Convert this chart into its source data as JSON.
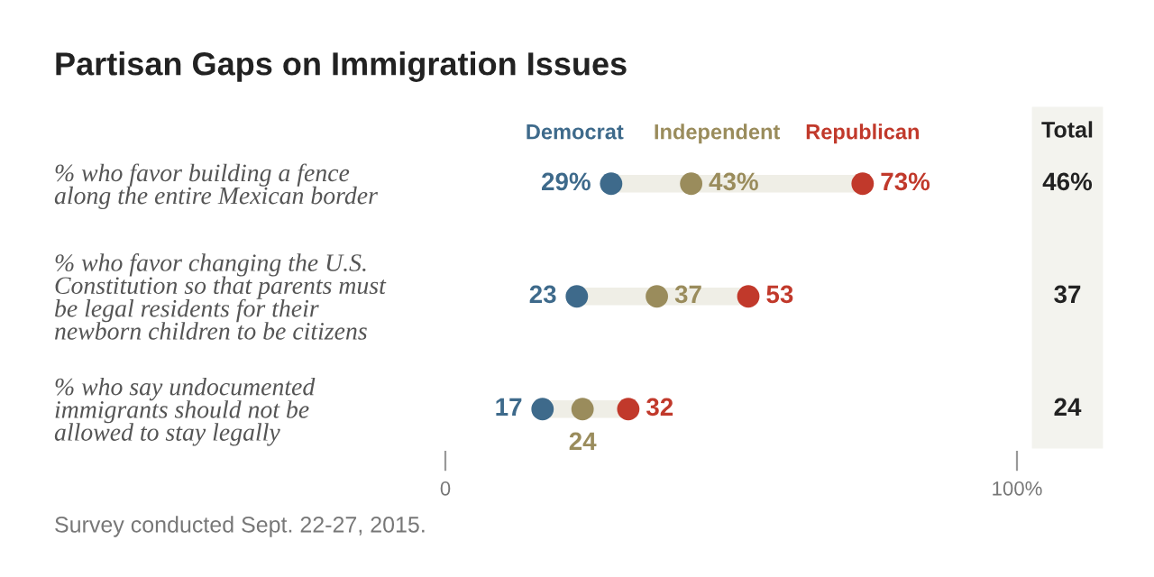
{
  "chart_data": {
    "type": "scatter",
    "title": "Partisan Gaps on Immigration Issues",
    "categories": [
      "% who favor building a fence\nalong the entire Mexican border",
      "% who favor changing the U.S.\nConstitution so that parents must\nbe legal residents for their\nnewborn children to be citizens",
      "% who say undocumented\nimmigrants should not be\nallowed to stay legally"
    ],
    "orientation": "horizontal",
    "series": [
      {
        "name": "Democrat",
        "color": "#3e6a8b",
        "values": [
          29,
          23,
          17
        ],
        "value_labels": [
          "29%",
          "23",
          "17"
        ]
      },
      {
        "name": "Independent",
        "color": "#9a8c5c",
        "values": [
          43,
          37,
          24
        ],
        "value_labels": [
          "43%",
          "37",
          "24"
        ]
      },
      {
        "name": "Republican",
        "color": "#c1392b",
        "values": [
          73,
          53,
          32
        ],
        "value_labels": [
          "73%",
          "53",
          "32"
        ]
      }
    ],
    "xlim": [
      0,
      100
    ],
    "xticks": [
      0,
      {
        "value": 100,
        "label": "100%"
      }
    ],
    "legend": "top",
    "grid": false,
    "marker": "circle",
    "annotations": [
      "Total",
      "46%",
      "37",
      "24",
      "Survey conducted Sept. 22-27, 2015."
    ]
  }
}
